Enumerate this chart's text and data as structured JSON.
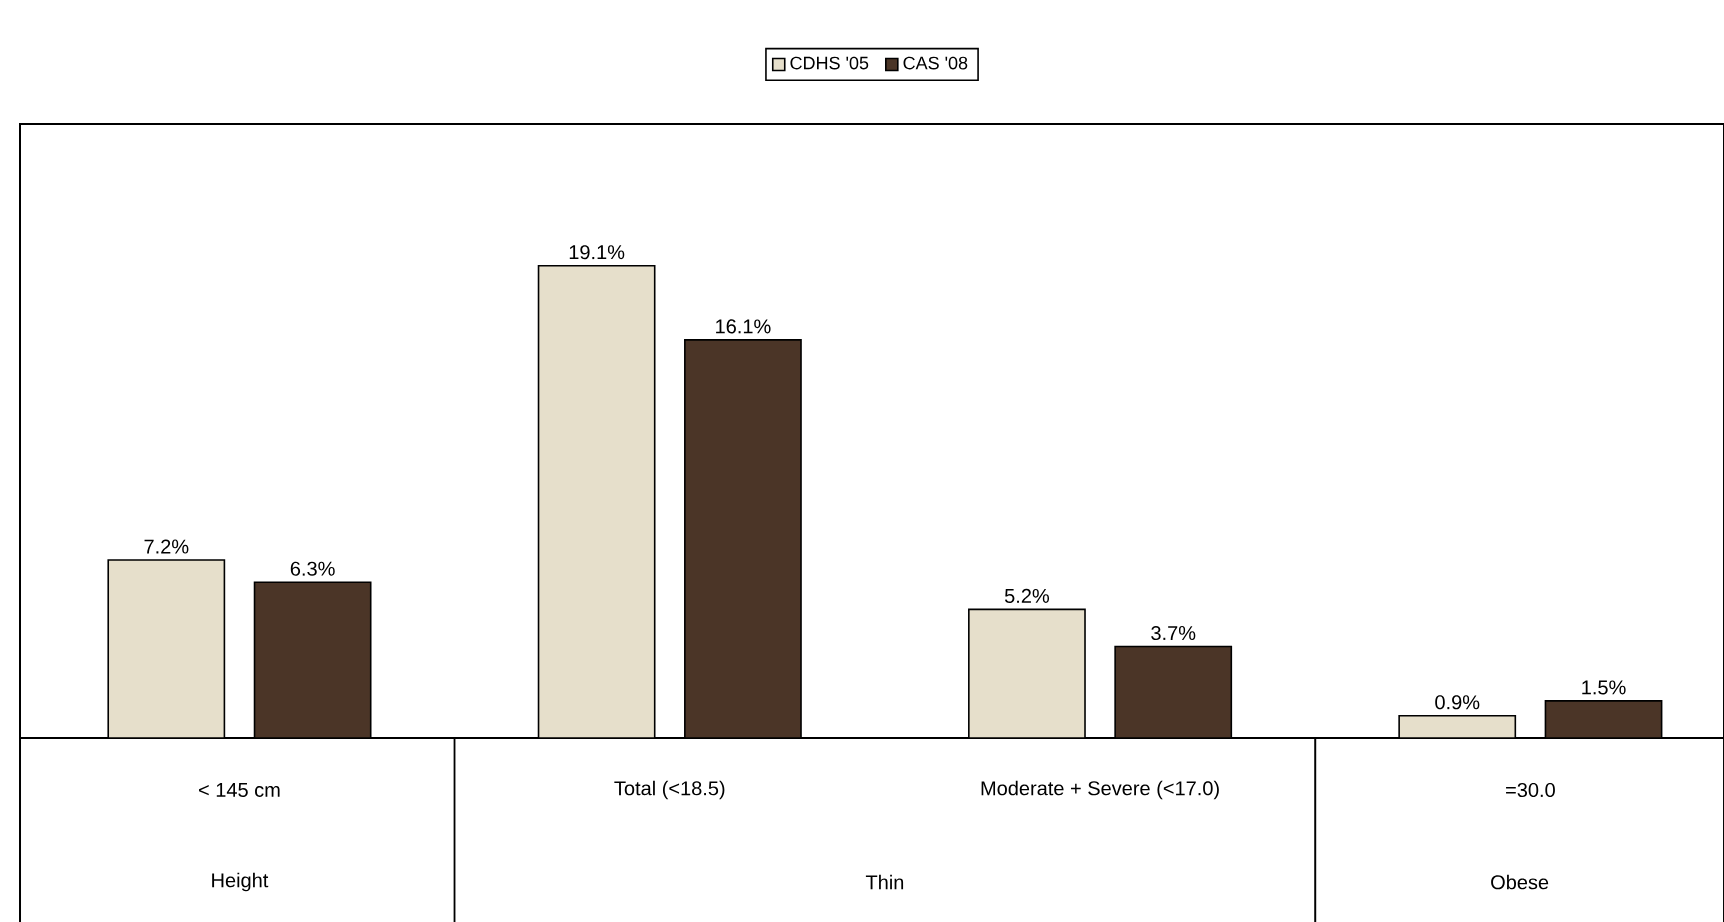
{
  "chart_data": {
    "type": "bar",
    "categories": [
      "< 145 cm",
      "Total (<18.5)",
      "Moderate + Severe (<17.0)",
      "=30.0"
    ],
    "series": [
      {
        "name": "CDHS '05",
        "color": "#e6dfcb",
        "values": [
          7.2,
          19.1,
          5.2,
          0.9
        ],
        "value_labels": [
          "7.2%",
          "19.1%",
          "5.2%",
          "0.9%"
        ]
      },
      {
        "name": "CAS '08",
        "color": "#4b3527",
        "values": [
          6.3,
          16.1,
          3.7,
          1.5
        ],
        "value_labels": [
          "6.3%",
          "16.1%",
          "3.7%",
          "1.5%"
        ]
      }
    ],
    "annotations": [
      "Height",
      "Thin",
      "Obese"
    ],
    "legend": "top"
  }
}
